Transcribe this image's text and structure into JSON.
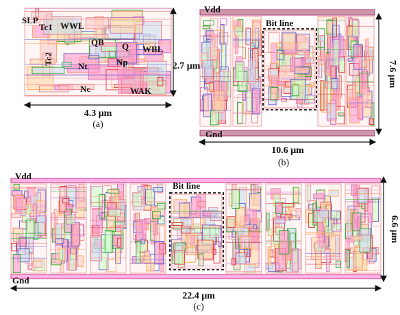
{
  "panels": [
    {
      "caption": "(a)",
      "width_label": "4.3 μm",
      "height_label": "2.7 μm",
      "labels": [
        "SLP",
        "Tc1",
        "WWL",
        "Tc2",
        "QB",
        "Q",
        "WBL",
        "Nt",
        "Np",
        "Nc",
        "WAK"
      ]
    },
    {
      "caption": "(b)",
      "width_label": "10.6 μm",
      "height_label": "7.6 μm",
      "labels": [
        "Vdd",
        "Bit line",
        "Gnd"
      ]
    },
    {
      "caption": "(c)",
      "width_label": "22.4 μm",
      "height_label": "6.6 μm",
      "labels": [
        "Vdd",
        "Bit line",
        "Gnd"
      ]
    }
  ]
}
